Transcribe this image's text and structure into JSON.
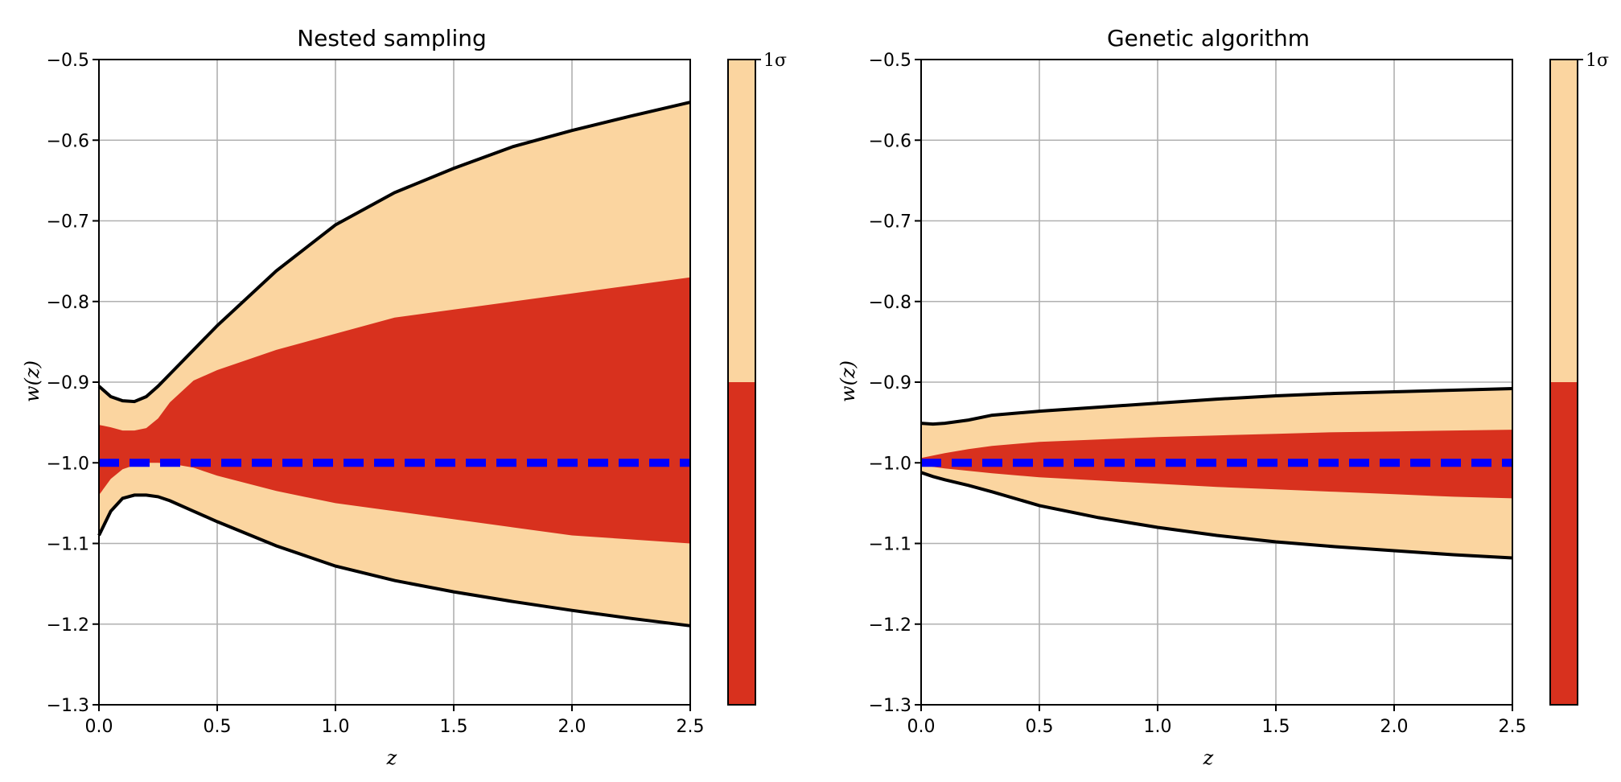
{
  "chart_data": [
    {
      "type": "area",
      "title": "Nested sampling",
      "xlabel": "z",
      "ylabel": "w(z)",
      "xlim": [
        0.0,
        2.5
      ],
      "ylim": [
        -1.3,
        -0.5
      ],
      "xticks": [
        "0.0",
        "0.5",
        "1.0",
        "1.5",
        "2.0",
        "2.5"
      ],
      "yticks": [
        "-0.5",
        "-0.6",
        "-0.7",
        "-0.8",
        "-0.9",
        "-1.0",
        "-1.1",
        "-1.2",
        "-1.3"
      ],
      "grid": true,
      "z": [
        0.0,
        0.05,
        0.1,
        0.15,
        0.2,
        0.25,
        0.3,
        0.4,
        0.5,
        0.75,
        1.0,
        1.25,
        1.5,
        1.75,
        2.0,
        2.25,
        2.5
      ],
      "upper_2sigma": [
        -0.905,
        -0.918,
        -0.923,
        -0.924,
        -0.918,
        -0.905,
        -0.89,
        -0.86,
        -0.83,
        -0.762,
        -0.705,
        -0.665,
        -0.635,
        -0.608,
        -0.588,
        -0.57,
        -0.553
      ],
      "upper_1sigma": [
        -0.953,
        -0.956,
        -0.96,
        -0.96,
        -0.957,
        -0.945,
        -0.925,
        -0.898,
        -0.885,
        -0.86,
        -0.84,
        -0.82,
        -0.81,
        -0.8,
        -0.79,
        -0.78,
        -0.77
      ],
      "lower_1sigma": [
        -1.04,
        -1.02,
        -1.008,
        -1.003,
        -1.0,
        -1.0,
        -1.001,
        -1.006,
        -1.016,
        -1.035,
        -1.05,
        -1.06,
        -1.07,
        -1.08,
        -1.09,
        -1.095,
        -1.1
      ],
      "lower_2sigma": [
        -1.09,
        -1.06,
        -1.044,
        -1.04,
        -1.04,
        -1.042,
        -1.047,
        -1.06,
        -1.073,
        -1.103,
        -1.128,
        -1.146,
        -1.16,
        -1.172,
        -1.183,
        -1.193,
        -1.202
      ],
      "fiducial": {
        "value": -1.0,
        "color": "#0000ff",
        "style": "dashed"
      },
      "colors": {
        "inner": "#d8311e",
        "outer": "#fbd5a0",
        "boundary": "#000000"
      },
      "colorbar": {
        "label": "1σ",
        "split": 0.5
      }
    },
    {
      "type": "area",
      "title": "Genetic algorithm",
      "xlabel": "z",
      "ylabel": "w(z)",
      "xlim": [
        0.0,
        2.5
      ],
      "ylim": [
        -1.3,
        -0.5
      ],
      "xticks": [
        "0.0",
        "0.5",
        "1.0",
        "1.5",
        "2.0",
        "2.5"
      ],
      "yticks": [
        "-0.5",
        "-0.6",
        "-0.7",
        "-0.8",
        "-0.9",
        "-1.0",
        "-1.1",
        "-1.2",
        "-1.3"
      ],
      "grid": true,
      "z": [
        0.0,
        0.05,
        0.1,
        0.2,
        0.3,
        0.5,
        0.75,
        1.0,
        1.25,
        1.5,
        1.75,
        2.0,
        2.25,
        2.5
      ],
      "upper_2sigma": [
        -0.951,
        -0.952,
        -0.951,
        -0.947,
        -0.941,
        -0.936,
        -0.931,
        -0.926,
        -0.921,
        -0.917,
        -0.914,
        -0.912,
        -0.91,
        -0.908
      ],
      "upper_1sigma": [
        -0.994,
        -0.991,
        -0.988,
        -0.983,
        -0.979,
        -0.974,
        -0.971,
        -0.968,
        -0.966,
        -0.964,
        -0.962,
        -0.961,
        -0.96,
        -0.959
      ],
      "lower_1sigma": [
        -1.003,
        -1.005,
        -1.007,
        -1.01,
        -1.013,
        -1.018,
        -1.022,
        -1.026,
        -1.03,
        -1.033,
        -1.036,
        -1.039,
        -1.042,
        -1.044
      ],
      "lower_2sigma": [
        -1.012,
        -1.017,
        -1.021,
        -1.028,
        -1.036,
        -1.053,
        -1.068,
        -1.08,
        -1.09,
        -1.098,
        -1.104,
        -1.109,
        -1.114,
        -1.118
      ],
      "fiducial": {
        "value": -1.0,
        "color": "#0000ff",
        "style": "dashed"
      },
      "colors": {
        "inner": "#d8311e",
        "outer": "#fbd5a0",
        "boundary": "#000000"
      },
      "colorbar": {
        "label": "1σ",
        "split": 0.5
      }
    }
  ]
}
